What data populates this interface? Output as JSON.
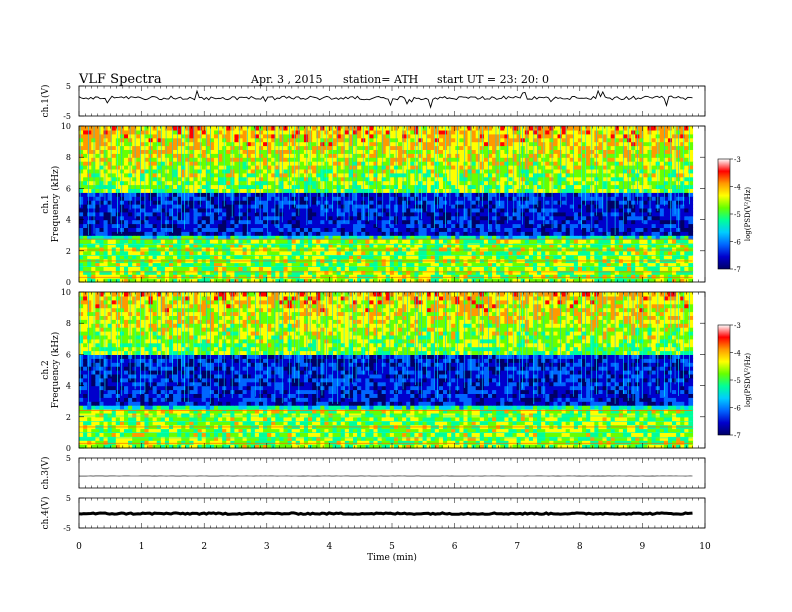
{
  "header": {
    "title": "VLF  Spectra",
    "date": "Apr. 3  , 2015",
    "station": "station= ATH",
    "start": "start  UT  =    23: 20: 0"
  },
  "chart_data": {
    "type": "heatmap",
    "xlabel": "Time  (min)",
    "xlim": [
      0,
      10
    ],
    "x_ticks": [
      "0",
      "1",
      "2",
      "3",
      "4",
      "5",
      "6",
      "7",
      "8",
      "9",
      "10"
    ],
    "data_end_min": 9.8,
    "panels": [
      {
        "id": "ch1-waveform",
        "type": "line",
        "ylabel": "ch.1(V)",
        "ylim": [
          -5,
          5
        ],
        "y_ticks": [
          "5",
          "-5"
        ],
        "baseline_v": 1.0,
        "noise_v": 0.6
      },
      {
        "id": "ch1-spectrogram",
        "type": "heatmap",
        "ylabel": "ch.1\nFrequency  (kHz)",
        "ylim": [
          0,
          10
        ],
        "y_ticks": [
          "0",
          "2",
          "4",
          "6",
          "8",
          "10"
        ],
        "colorbar": {
          "label": "log(PSD(V²/Hz)",
          "range": [
            -7,
            -3
          ],
          "ticks": [
            "-3",
            "-4",
            "-5",
            "-6",
            "-7"
          ]
        },
        "bands_khz": {
          "low_power_hum": [
            0,
            2.8
          ],
          "quiet_band": [
            3.0,
            5.8
          ],
          "broadband_sferics": [
            5.8,
            10
          ]
        }
      },
      {
        "id": "ch2-spectrogram",
        "type": "heatmap",
        "ylabel": "ch.2\nFrequency  (kHz)",
        "ylim": [
          0,
          10
        ],
        "y_ticks": [
          "0",
          "2",
          "4",
          "6",
          "8",
          "10"
        ],
        "colorbar": {
          "label": "log(PSD(V²/Hz)",
          "range": [
            -7,
            -3
          ],
          "ticks": [
            "-3",
            "-4",
            "-5",
            "-6",
            "-7"
          ]
        },
        "bands_khz": {
          "low_power_hum": [
            0,
            2.5
          ],
          "quiet_band": [
            2.8,
            6.0
          ],
          "broadband_sferics": [
            6.0,
            10
          ]
        }
      },
      {
        "id": "ch3-waveform",
        "type": "line",
        "ylabel": "ch.3(V)",
        "ylim": [
          -5,
          5
        ],
        "y_ticks": [
          "5"
        ],
        "baseline_v": -1.0,
        "noise_v": 0.05
      },
      {
        "id": "ch4-waveform",
        "type": "line",
        "ylabel": "ch.4(V)",
        "ylim": [
          -5,
          5
        ],
        "y_ticks": [
          "5",
          "-5"
        ],
        "baseline_v": -0.2,
        "noise_v": 0.25
      }
    ]
  },
  "colors": {
    "scale": [
      "#000066",
      "#0000cc",
      "#0066ff",
      "#00ccff",
      "#00ff99",
      "#66ff00",
      "#ffff00",
      "#ff9900",
      "#ff0000",
      "#ffffff"
    ]
  }
}
